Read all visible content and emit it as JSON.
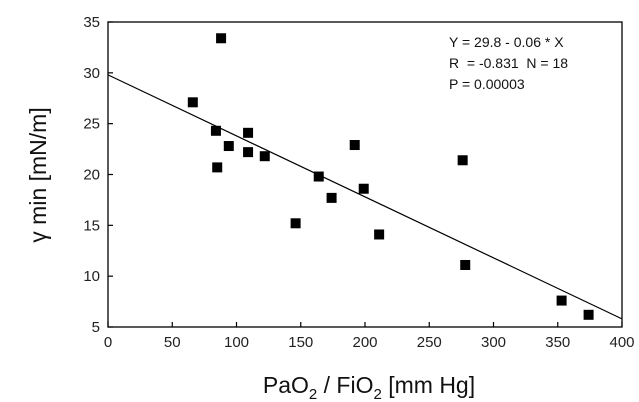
{
  "chart_data": {
    "type": "scatter",
    "xlabel": {
      "prefix": "PaO",
      "sub1": "2",
      "mid": " / FiO",
      "sub2": "2",
      "suffix": " [mm Hg]"
    },
    "ylabel": {
      "symbol": "γ",
      "text": " min [mN/m]"
    },
    "xlim": [
      0,
      400
    ],
    "ylim": [
      5,
      35
    ],
    "x_ticks": [
      0,
      50,
      100,
      150,
      200,
      250,
      300,
      350,
      400
    ],
    "y_ticks": [
      5,
      10,
      15,
      20,
      25,
      30,
      35
    ],
    "points": [
      {
        "x": 66,
        "y": 27.1
      },
      {
        "x": 88,
        "y": 33.4
      },
      {
        "x": 84,
        "y": 24.3
      },
      {
        "x": 85,
        "y": 20.7
      },
      {
        "x": 94,
        "y": 22.8
      },
      {
        "x": 109,
        "y": 24.1
      },
      {
        "x": 109,
        "y": 22.2
      },
      {
        "x": 122,
        "y": 21.8
      },
      {
        "x": 146,
        "y": 15.2
      },
      {
        "x": 164,
        "y": 19.8
      },
      {
        "x": 174,
        "y": 17.7
      },
      {
        "x": 192,
        "y": 22.9
      },
      {
        "x": 199,
        "y": 18.6
      },
      {
        "x": 211,
        "y": 14.1
      },
      {
        "x": 276,
        "y": 21.4
      },
      {
        "x": 278,
        "y": 11.1
      },
      {
        "x": 353,
        "y": 7.6
      },
      {
        "x": 374,
        "y": 6.2
      }
    ],
    "fit_line": {
      "intercept": 29.8,
      "slope": -0.06
    },
    "annotations": [
      "Y = 29.8 - 0.06 * X",
      "R  = -0.831  N = 18",
      "P = 0.00003"
    ],
    "grid": false,
    "marker": "square",
    "marker_color": "#000000",
    "line_color": "#000000"
  }
}
